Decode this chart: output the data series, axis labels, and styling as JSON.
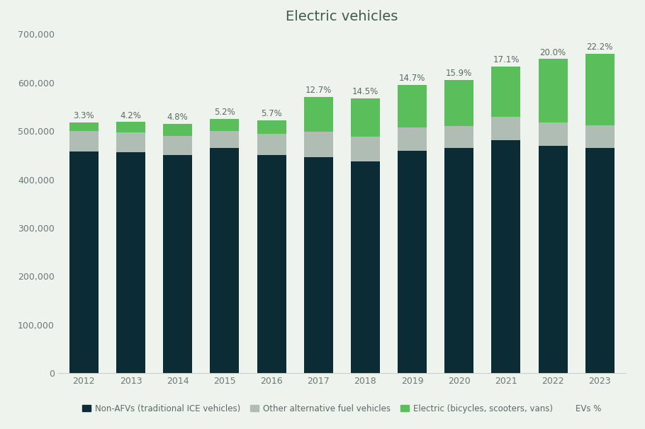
{
  "title": "Electric vehicles",
  "years": [
    2012,
    2013,
    2014,
    2015,
    2016,
    2017,
    2018,
    2019,
    2020,
    2021,
    2022,
    2023
  ],
  "non_afv": [
    458000,
    456000,
    450000,
    465000,
    450000,
    447000,
    437000,
    460000,
    465000,
    482000,
    470000,
    465000
  ],
  "other_afv": [
    43000,
    42000,
    40000,
    35000,
    45000,
    52000,
    52000,
    48000,
    45000,
    48000,
    48000,
    47000
  ],
  "electric": [
    17000,
    21000,
    25000,
    25000,
    28000,
    72000,
    79000,
    88000,
    96000,
    104000,
    131000,
    148000
  ],
  "ev_pct": [
    "3.3%",
    "4.2%",
    "4.8%",
    "5.2%",
    "5.7%",
    "12.7%",
    "14.5%",
    "14.7%",
    "15.9%",
    "17.1%",
    "20.0%",
    "22.2%"
  ],
  "colors": {
    "non_afv": "#0b2b35",
    "other_afv": "#b0bdb5",
    "electric": "#5abf5a",
    "background": "#eef3ed"
  },
  "legend_labels": [
    "Non-AFVs (traditional ICE vehicles)",
    "Other alternative fuel vehicles",
    "Electric (bicycles, scooters, vans)",
    "EVs %"
  ],
  "ylim": [
    0,
    700000
  ],
  "yticks": [
    0,
    100000,
    200000,
    300000,
    400000,
    500000,
    600000,
    700000
  ],
  "tick_color": "#6a7a72",
  "label_color": "#5a6a62",
  "title_color": "#3d5a4a"
}
